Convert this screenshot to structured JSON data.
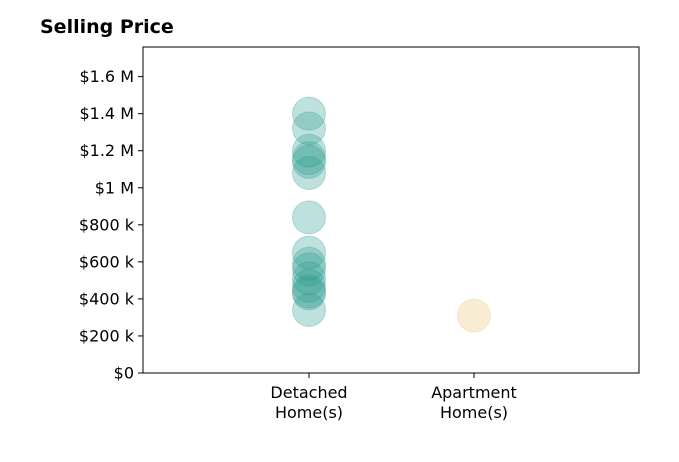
{
  "chart_data": {
    "type": "scatter",
    "title": "Selling Price",
    "xlabel": "",
    "ylabel": "",
    "categories": [
      [
        "Detached",
        "Home(s)"
      ],
      [
        "Apartment",
        "Home(s)"
      ]
    ],
    "y_ticks": [
      {
        "value": 0,
        "label": "$0"
      },
      {
        "value": 200000,
        "label": "$200 k"
      },
      {
        "value": 400000,
        "label": "$400 k"
      },
      {
        "value": 600000,
        "label": "$600 k"
      },
      {
        "value": 800000,
        "label": "$800 k"
      },
      {
        "value": 1000000,
        "label": "$1 M"
      },
      {
        "value": 1200000,
        "label": "$1.2 M"
      },
      {
        "value": 1400000,
        "label": "$1.4 M"
      },
      {
        "value": 1600000,
        "label": "$1.6 M"
      }
    ],
    "ylim": [
      0,
      1760000
    ],
    "grid": false,
    "series": [
      {
        "category_index": 0,
        "color": "#2a9d8f",
        "opacity": 0.3,
        "values": [
          1400000,
          1320000,
          1200000,
          1160000,
          1140000,
          1080000,
          840000,
          650000,
          590000,
          560000,
          510000,
          470000,
          440000,
          430000,
          340000
        ]
      },
      {
        "category_index": 1,
        "color": "#e9c46a",
        "opacity": 0.3,
        "values": [
          310000
        ]
      }
    ]
  }
}
